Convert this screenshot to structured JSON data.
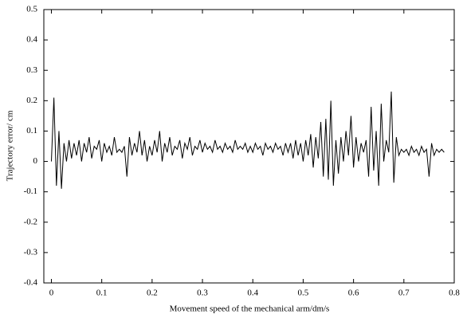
{
  "chart_data": {
    "type": "line",
    "xlabel": "Movement speed of the mechanical arm/dm/s",
    "ylabel": "Trajectory error/ cm",
    "xlim": [
      -0.015,
      0.8
    ],
    "ylim": [
      -0.4,
      0.5
    ],
    "xticks": [
      0,
      0.1,
      0.2,
      0.3,
      0.4,
      0.5,
      0.6,
      0.7,
      0.8
    ],
    "yticks": [
      -0.4,
      -0.3,
      -0.2,
      -0.1,
      0,
      0.1,
      0.2,
      0.3,
      0.4,
      0.5
    ],
    "series": [
      {
        "color": "#000000",
        "x": [
          0,
          0.005,
          0.01,
          0.015,
          0.02,
          0.025,
          0.03,
          0.035,
          0.04,
          0.045,
          0.05,
          0.055,
          0.06,
          0.065,
          0.07,
          0.075,
          0.08,
          0.085,
          0.09,
          0.095,
          0.1,
          0.105,
          0.11,
          0.115,
          0.12,
          0.125,
          0.13,
          0.135,
          0.14,
          0.145,
          0.15,
          0.155,
          0.16,
          0.165,
          0.17,
          0.175,
          0.18,
          0.185,
          0.19,
          0.195,
          0.2,
          0.205,
          0.21,
          0.215,
          0.22,
          0.225,
          0.23,
          0.235,
          0.24,
          0.245,
          0.25,
          0.255,
          0.26,
          0.265,
          0.27,
          0.275,
          0.28,
          0.285,
          0.29,
          0.295,
          0.3,
          0.305,
          0.31,
          0.315,
          0.32,
          0.325,
          0.33,
          0.335,
          0.34,
          0.345,
          0.35,
          0.355,
          0.36,
          0.365,
          0.37,
          0.375,
          0.38,
          0.385,
          0.39,
          0.395,
          0.4,
          0.405,
          0.41,
          0.415,
          0.42,
          0.425,
          0.43,
          0.435,
          0.44,
          0.445,
          0.45,
          0.455,
          0.46,
          0.465,
          0.47,
          0.475,
          0.48,
          0.485,
          0.49,
          0.495,
          0.5,
          0.505,
          0.51,
          0.515,
          0.52,
          0.525,
          0.53,
          0.535,
          0.54,
          0.545,
          0.55,
          0.555,
          0.56,
          0.565,
          0.57,
          0.575,
          0.58,
          0.585,
          0.59,
          0.595,
          0.6,
          0.605,
          0.61,
          0.615,
          0.62,
          0.625,
          0.63,
          0.635,
          0.64,
          0.645,
          0.65,
          0.655,
          0.66,
          0.665,
          0.67,
          0.675,
          0.68,
          0.685,
          0.69,
          0.695,
          0.7,
          0.705,
          0.71,
          0.715,
          0.72,
          0.725,
          0.73,
          0.735,
          0.74,
          0.745,
          0.75,
          0.755,
          0.76,
          0.765,
          0.77,
          0.775,
          0.78
        ],
        "values": [
          0.0,
          0.21,
          -0.08,
          0.1,
          -0.09,
          0.06,
          0.0,
          0.07,
          0.01,
          0.06,
          0.02,
          0.07,
          0.0,
          0.06,
          0.03,
          0.08,
          0.01,
          0.05,
          0.04,
          0.07,
          0.0,
          0.06,
          0.03,
          0.05,
          0.02,
          0.08,
          0.03,
          0.04,
          0.03,
          0.05,
          -0.05,
          0.08,
          0.02,
          0.06,
          0.03,
          0.1,
          0.02,
          0.07,
          0.0,
          0.05,
          0.02,
          0.07,
          0.03,
          0.1,
          0.0,
          0.06,
          0.03,
          0.08,
          0.02,
          0.05,
          0.04,
          0.07,
          0.01,
          0.06,
          0.04,
          0.08,
          0.02,
          0.05,
          0.04,
          0.07,
          0.03,
          0.06,
          0.04,
          0.05,
          0.03,
          0.07,
          0.04,
          0.05,
          0.03,
          0.06,
          0.04,
          0.05,
          0.03,
          0.07,
          0.04,
          0.05,
          0.04,
          0.06,
          0.03,
          0.05,
          0.03,
          0.06,
          0.04,
          0.05,
          0.02,
          0.06,
          0.04,
          0.05,
          0.03,
          0.06,
          0.04,
          0.05,
          0.02,
          0.06,
          0.03,
          0.06,
          0.01,
          0.07,
          0.02,
          0.06,
          0.0,
          0.07,
          0.02,
          0.09,
          -0.02,
          0.08,
          0.01,
          0.13,
          -0.05,
          0.14,
          -0.06,
          0.2,
          -0.08,
          0.07,
          -0.04,
          0.08,
          0.0,
          0.1,
          0.02,
          0.15,
          -0.02,
          0.08,
          0.0,
          0.06,
          0.03,
          0.07,
          -0.05,
          0.18,
          -0.03,
          0.1,
          -0.08,
          0.19,
          0.0,
          0.07,
          0.03,
          0.23,
          -0.07,
          0.08,
          0.02,
          0.04,
          0.03,
          0.04,
          0.02,
          0.05,
          0.03,
          0.04,
          0.02,
          0.05,
          0.03,
          0.04,
          -0.05,
          0.06,
          0.02,
          0.04,
          0.03,
          0.04,
          0.03
        ]
      }
    ]
  }
}
